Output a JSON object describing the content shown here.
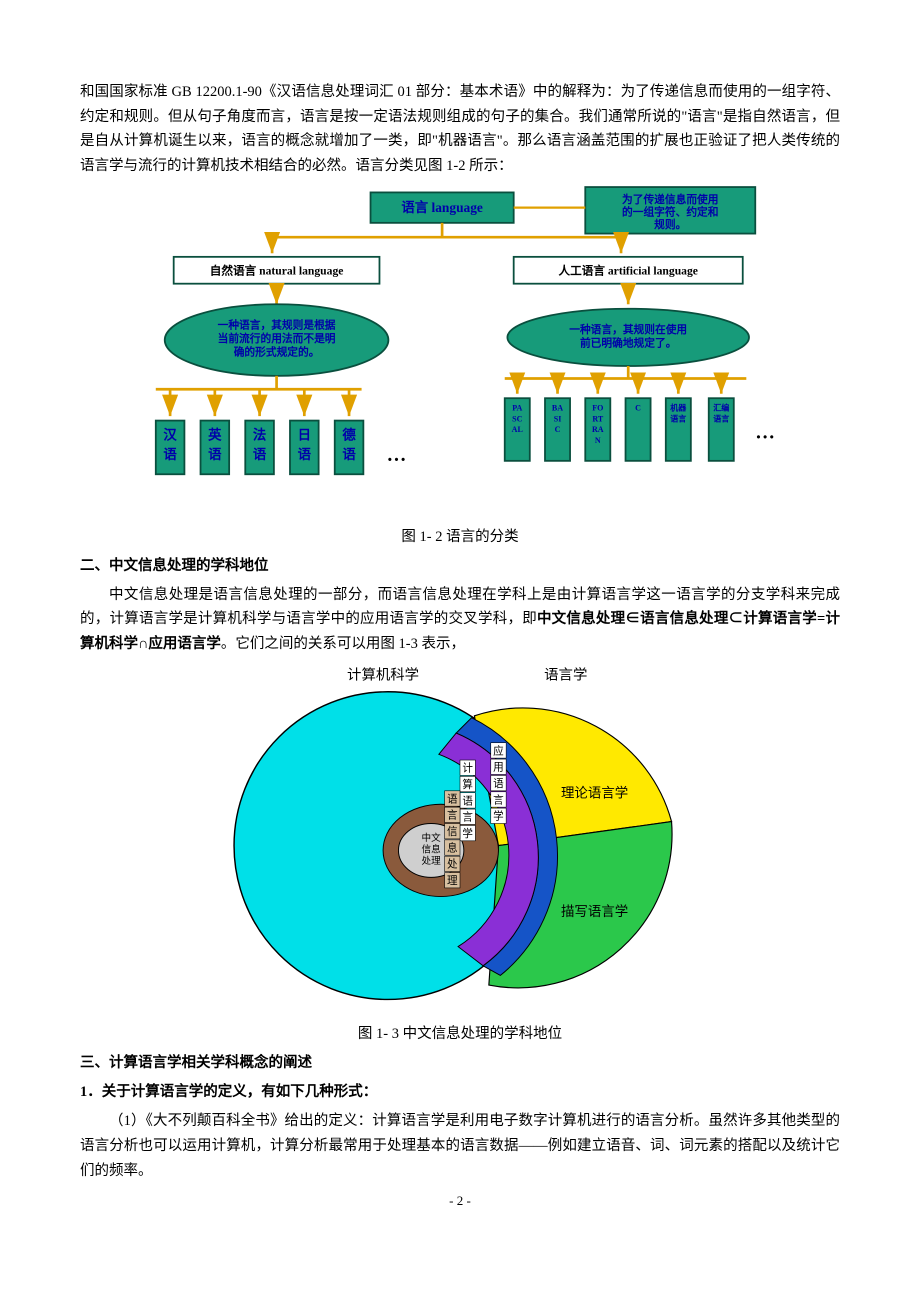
{
  "para1": "和国国家标准 GB 12200.1-90《汉语信息处理词汇 01 部分：基本术语》中的解释为：为了传递信息而使用的一组字符、约定和规则。但从句子角度而言，语言是按一定语法规则组成的句子的集合。我们通常所说的\"语言\"是指自然语言，但是自从计算机诞生以来，语言的概念就增加了一类，即\"机器语言\"。那么语言涵盖范围的扩展也正验证了把人类传统的语言学与流行的计算机技术相结合的必然。语言分类见图 1-2 所示：",
  "fig1": {
    "caption": "图 1- 2 语言的分类",
    "root": "语言  language",
    "root_def": "为了传递信息而使用的一组字符、约定和规则。",
    "left_title": "自然语言  natural language",
    "left_def": "一种语言，其规则是根据当前流行的用法而不是明确的形式规定的。",
    "left_leaves": [
      "汉语",
      "英语",
      "法语",
      "日语",
      "德语"
    ],
    "right_title": "人工语言  artificial language",
    "right_def": "一种语言，其规则在使用前已明确地规定了。",
    "right_leaves": [
      "PASCAL",
      "BASIC",
      "FORTRAN",
      "C",
      "机器语言",
      "汇编语言"
    ],
    "ellipsis": "…",
    "colors": {
      "box_fill": "#179b7a",
      "box_stroke": "#0a4f3e",
      "ellipse_fill": "#179b7a",
      "ellipse_stroke": "#0a4f3e",
      "text_label": "#0000aa",
      "root_text": "#0000aa",
      "arrow": "#e0a000",
      "arrow_shadow": "#8a7a30",
      "bg": "#ffffff"
    }
  },
  "heading2": "二、中文信息处理的学科地位",
  "para2a": "中文信息处理是语言信息处理的一部分，而语言信息处理在学科上是由计算语言学这一语言学的分支学科来完成的，计算语言学是计算机科学与语言学中的应用语言学的交叉学科，即",
  "para2b": "中文信息处理∈语言信息处理⊂计算语言学=计算机科学∩应用语言学",
  "para2c": "。它们之间的关系可以用图 1-3 表示，",
  "fig2": {
    "caption": "图 1- 3  中文信息处理的学科地位",
    "left_top": "计算机科学",
    "right_top": "语言学",
    "right_mid": "理论语言学",
    "right_low": "描写语言学",
    "vert_strip1": "计算语言学",
    "vert_strip2": "应用语言学",
    "vert_strip3": "语言信息处理",
    "center": "中文信息处理",
    "colors": {
      "left_circle": "#00e0e8",
      "yellow": "#ffe900",
      "green": "#2bc84b",
      "blue_band": "#1554c7",
      "purple_band": "#8a2fd6",
      "brown_ring": "#8a5a3c",
      "inner_grey": "#cfcfcf",
      "white": "#ffffff",
      "stroke": "#000000"
    }
  },
  "heading3": "三、计算语言学相关学科概念的阐述",
  "sub1": "1．关于计算语言学的定义，有如下几种形式：",
  "para3": "（1）《大不列颠百科全书》给出的定义：计算语言学是利用电子数字计算机进行的语言分析。虽然许多其他类型的语言分析也可以运用计算机，计算分析最常用于处理基本的语言数据——例如建立语音、词、词元素的搭配以及统计它们的频率。",
  "pagenum": "- 2 -"
}
